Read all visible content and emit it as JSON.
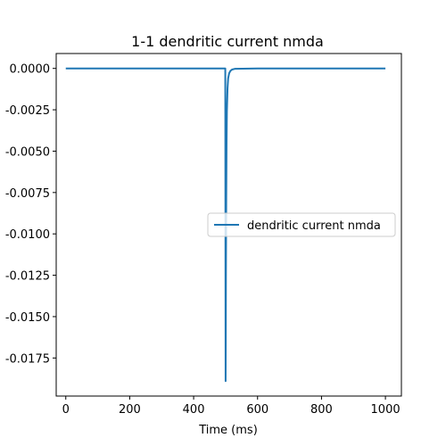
{
  "chart_data": {
    "type": "line",
    "title": "1-1 dendritic current nmda",
    "xlabel": "Time (ms)",
    "ylabel": "",
    "xlim": [
      -30,
      1050
    ],
    "ylim": [
      -0.0198,
      0.0009
    ],
    "xticks": [
      0,
      200,
      400,
      600,
      800,
      1000
    ],
    "xtick_labels": [
      "0",
      "200",
      "400",
      "600",
      "800",
      "1000"
    ],
    "yticks": [
      0.0,
      -0.0025,
      -0.005,
      -0.0075,
      -0.01,
      -0.0125,
      -0.015,
      -0.0175
    ],
    "ytick_labels": [
      "0.0000",
      "-0.0025",
      "-0.0050",
      "-0.0075",
      "-0.0100",
      "-0.0125",
      "-0.0150",
      "-0.0175"
    ],
    "grid": false,
    "legend_position": "center-right",
    "series": [
      {
        "name": "dendritic current nmda",
        "color": "#1f77b4",
        "x": [
          0,
          100,
          200,
          300,
          400,
          495,
          499,
          500,
          500.5,
          501,
          502,
          503,
          504,
          506,
          508,
          511,
          515,
          520,
          530,
          600,
          700,
          800,
          900,
          1000
        ],
        "y": [
          0.0,
          0.0,
          0.0,
          0.0,
          0.0,
          0.0,
          0.0,
          -0.0189,
          -0.0165,
          -0.0125,
          -0.0078,
          -0.0045,
          -0.0026,
          -0.0012,
          -0.0006,
          -0.0003,
          -0.00015,
          -7e-05,
          -2e-05,
          0.0,
          0.0,
          0.0,
          0.0,
          0.0
        ]
      }
    ]
  }
}
